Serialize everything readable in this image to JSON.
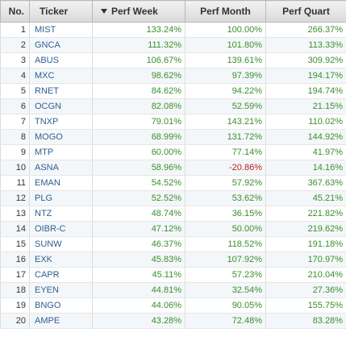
{
  "header": {
    "no": "No.",
    "ticker": "Ticker",
    "perf_week": "Perf Week",
    "perf_month": "Perf Month",
    "perf_quart": "Perf Quart",
    "sort_icon": "sort-descending-arrow"
  },
  "colors": {
    "positive": "#3a8f2c",
    "negative": "#b8201f",
    "ticker_link": "#2e5f93"
  },
  "rows": [
    {
      "no": "1",
      "ticker": "MIST",
      "week": "133.24%",
      "month": "100.00%",
      "quart": "266.37%"
    },
    {
      "no": "2",
      "ticker": "GNCA",
      "week": "111.32%",
      "month": "101.80%",
      "quart": "113.33%"
    },
    {
      "no": "3",
      "ticker": "ABUS",
      "week": "106.67%",
      "month": "139.61%",
      "quart": "309.92%"
    },
    {
      "no": "4",
      "ticker": "MXC",
      "week": "98.62%",
      "month": "97.39%",
      "quart": "194.17%"
    },
    {
      "no": "5",
      "ticker": "RNET",
      "week": "84.62%",
      "month": "94.22%",
      "quart": "194.74%"
    },
    {
      "no": "6",
      "ticker": "OCGN",
      "week": "82.08%",
      "month": "52.59%",
      "quart": "21.15%"
    },
    {
      "no": "7",
      "ticker": "TNXP",
      "week": "79.01%",
      "month": "143.21%",
      "quart": "110.02%"
    },
    {
      "no": "8",
      "ticker": "MOGO",
      "week": "68.99%",
      "month": "131.72%",
      "quart": "144.92%"
    },
    {
      "no": "9",
      "ticker": "MTP",
      "week": "60.00%",
      "month": "77.14%",
      "quart": "41.97%"
    },
    {
      "no": "10",
      "ticker": "ASNA",
      "week": "58.96%",
      "month": "-20.86%",
      "quart": "14.16%"
    },
    {
      "no": "11",
      "ticker": "EMAN",
      "week": "54.52%",
      "month": "57.92%",
      "quart": "367.63%"
    },
    {
      "no": "12",
      "ticker": "PLG",
      "week": "52.52%",
      "month": "53.62%",
      "quart": "45.21%"
    },
    {
      "no": "13",
      "ticker": "NTZ",
      "week": "48.74%",
      "month": "36.15%",
      "quart": "221.82%"
    },
    {
      "no": "14",
      "ticker": "OIBR-C",
      "week": "47.12%",
      "month": "50.00%",
      "quart": "219.62%"
    },
    {
      "no": "15",
      "ticker": "SUNW",
      "week": "46.37%",
      "month": "118.52%",
      "quart": "191.18%"
    },
    {
      "no": "16",
      "ticker": "EXK",
      "week": "45.83%",
      "month": "107.92%",
      "quart": "170.97%"
    },
    {
      "no": "17",
      "ticker": "CAPR",
      "week": "45.11%",
      "month": "57.23%",
      "quart": "210.04%"
    },
    {
      "no": "18",
      "ticker": "EYEN",
      "week": "44.81%",
      "month": "32.54%",
      "quart": "27.36%"
    },
    {
      "no": "19",
      "ticker": "BNGO",
      "week": "44.06%",
      "month": "90.05%",
      "quart": "155.75%"
    },
    {
      "no": "20",
      "ticker": "AMPE",
      "week": "43.28%",
      "month": "72.48%",
      "quart": "83.28%"
    }
  ]
}
